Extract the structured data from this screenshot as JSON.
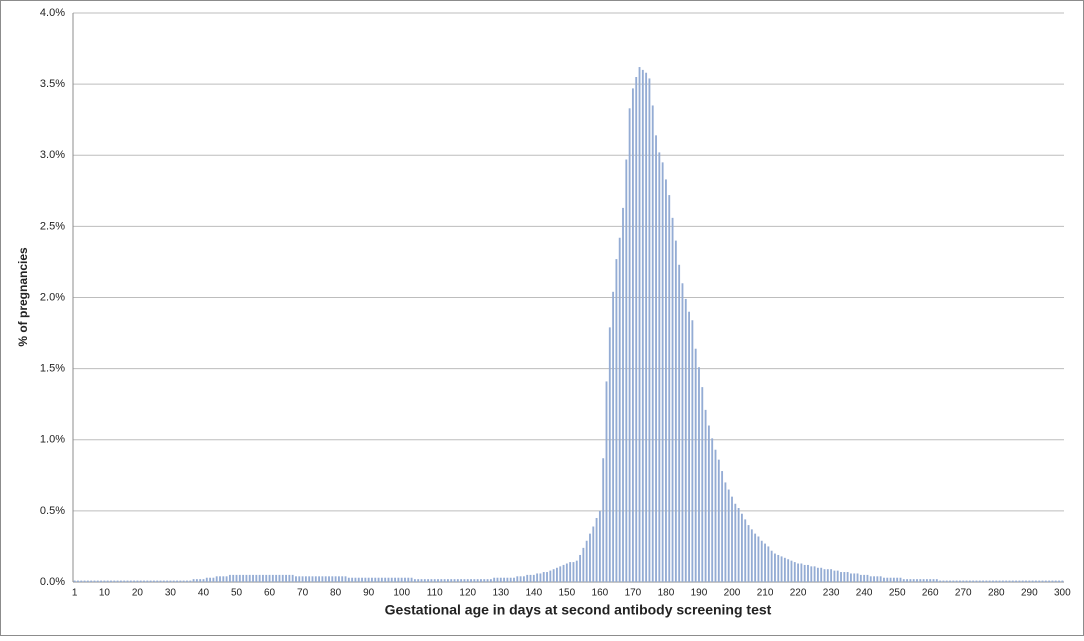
{
  "chart_data": {
    "type": "bar",
    "x_label": "Gestational age in days at second antibody screening test",
    "y_label": "% of pregnancies",
    "color": "#94acd4",
    "grid": true,
    "ylim": [
      0,
      4
    ],
    "yticks": [
      {
        "value": 0,
        "label": "0.0%"
      },
      {
        "value": 0.5,
        "label": "0.5%"
      },
      {
        "value": 1,
        "label": "1.0%"
      },
      {
        "value": 1.5,
        "label": "1.5%"
      },
      {
        "value": 2,
        "label": "2.0%"
      },
      {
        "value": 2.5,
        "label": "2.5%"
      },
      {
        "value": 3,
        "label": "3.0%"
      },
      {
        "value": 3.5,
        "label": "3.5%"
      },
      {
        "value": 4,
        "label": "4.0%"
      }
    ],
    "categories": [
      "1",
      null,
      null,
      null,
      null,
      null,
      null,
      null,
      null,
      "10",
      null,
      null,
      null,
      null,
      null,
      null,
      null,
      null,
      null,
      "20",
      null,
      null,
      null,
      null,
      null,
      null,
      null,
      null,
      null,
      "30",
      null,
      null,
      null,
      null,
      null,
      null,
      null,
      null,
      null,
      "40",
      null,
      null,
      null,
      null,
      null,
      null,
      null,
      null,
      null,
      "50",
      null,
      null,
      null,
      null,
      null,
      null,
      null,
      null,
      null,
      "60",
      null,
      null,
      null,
      null,
      null,
      null,
      null,
      null,
      null,
      "70",
      null,
      null,
      null,
      null,
      null,
      null,
      null,
      null,
      null,
      "80",
      null,
      null,
      null,
      null,
      null,
      null,
      null,
      null,
      null,
      "90",
      null,
      null,
      null,
      null,
      null,
      null,
      null,
      null,
      null,
      "100",
      null,
      null,
      null,
      null,
      null,
      null,
      null,
      null,
      null,
      "110",
      null,
      null,
      null,
      null,
      null,
      null,
      null,
      null,
      null,
      "120",
      null,
      null,
      null,
      null,
      null,
      null,
      null,
      null,
      null,
      "130",
      null,
      null,
      null,
      null,
      null,
      null,
      null,
      null,
      null,
      "140",
      null,
      null,
      null,
      null,
      null,
      null,
      null,
      null,
      null,
      "150",
      null,
      null,
      null,
      null,
      null,
      null,
      null,
      null,
      null,
      "160",
      null,
      null,
      null,
      null,
      null,
      null,
      null,
      null,
      null,
      "170",
      null,
      null,
      null,
      null,
      null,
      null,
      null,
      null,
      null,
      "180",
      null,
      null,
      null,
      null,
      null,
      null,
      null,
      null,
      null,
      "190",
      null,
      null,
      null,
      null,
      null,
      null,
      null,
      null,
      null,
      "200",
      null,
      null,
      null,
      null,
      null,
      null,
      null,
      null,
      null,
      "210",
      null,
      null,
      null,
      null,
      null,
      null,
      null,
      null,
      null,
      "220",
      null,
      null,
      null,
      null,
      null,
      null,
      null,
      null,
      null,
      "230",
      null,
      null,
      null,
      null,
      null,
      null,
      null,
      null,
      null,
      "240",
      null,
      null,
      null,
      null,
      null,
      null,
      null,
      null,
      null,
      "250",
      null,
      null,
      null,
      null,
      null,
      null,
      null,
      null,
      null,
      "260",
      null,
      null,
      null,
      null,
      null,
      null,
      null,
      null,
      null,
      "270",
      null,
      null,
      null,
      null,
      null,
      null,
      null,
      null,
      null,
      "280",
      null,
      null,
      null,
      null,
      null,
      null,
      null,
      null,
      null,
      "290",
      null,
      null,
      null,
      null,
      null,
      null,
      null,
      null,
      null,
      "300"
    ],
    "values": [
      0.01,
      0.01,
      0.01,
      0.01,
      0.01,
      0.01,
      0.01,
      0.01,
      0.01,
      0.01,
      0.01,
      0.01,
      0.01,
      0.01,
      0.01,
      0.01,
      0.01,
      0.01,
      0.01,
      0.01,
      0.01,
      0.01,
      0.01,
      0.01,
      0.01,
      0.01,
      0.01,
      0.01,
      0.01,
      0.01,
      0.01,
      0.01,
      0.01,
      0.01,
      0.01,
      0.01,
      0.02,
      0.02,
      0.02,
      0.02,
      0.03,
      0.03,
      0.03,
      0.04,
      0.04,
      0.04,
      0.04,
      0.05,
      0.05,
      0.05,
      0.05,
      0.05,
      0.05,
      0.05,
      0.05,
      0.05,
      0.05,
      0.05,
      0.05,
      0.05,
      0.05,
      0.05,
      0.05,
      0.05,
      0.05,
      0.05,
      0.05,
      0.04,
      0.04,
      0.04,
      0.04,
      0.04,
      0.04,
      0.04,
      0.04,
      0.04,
      0.04,
      0.04,
      0.04,
      0.04,
      0.04,
      0.04,
      0.04,
      0.03,
      0.03,
      0.03,
      0.03,
      0.03,
      0.03,
      0.03,
      0.03,
      0.03,
      0.03,
      0.03,
      0.03,
      0.03,
      0.03,
      0.03,
      0.03,
      0.03,
      0.03,
      0.03,
      0.03,
      0.02,
      0.02,
      0.02,
      0.02,
      0.02,
      0.02,
      0.02,
      0.02,
      0.02,
      0.02,
      0.02,
      0.02,
      0.02,
      0.02,
      0.02,
      0.02,
      0.02,
      0.02,
      0.02,
      0.02,
      0.02,
      0.02,
      0.02,
      0.02,
      0.03,
      0.03,
      0.03,
      0.03,
      0.03,
      0.03,
      0.03,
      0.04,
      0.04,
      0.04,
      0.05,
      0.05,
      0.05,
      0.06,
      0.06,
      0.07,
      0.07,
      0.08,
      0.09,
      0.1,
      0.11,
      0.12,
      0.13,
      0.14,
      0.14,
      0.15,
      0.19,
      0.24,
      0.29,
      0.34,
      0.39,
      0.45,
      0.5,
      0.87,
      1.41,
      1.79,
      2.04,
      2.27,
      2.42,
      2.63,
      2.97,
      3.33,
      3.47,
      3.55,
      3.62,
      3.6,
      3.58,
      3.54,
      3.35,
      3.14,
      3.02,
      2.95,
      2.83,
      2.72,
      2.56,
      2.4,
      2.23,
      2.1,
      1.99,
      1.9,
      1.84,
      1.64,
      1.51,
      1.37,
      1.21,
      1.1,
      1.01,
      0.93,
      0.86,
      0.78,
      0.7,
      0.65,
      0.6,
      0.55,
      0.52,
      0.48,
      0.44,
      0.4,
      0.37,
      0.34,
      0.32,
      0.29,
      0.27,
      0.25,
      0.22,
      0.2,
      0.19,
      0.18,
      0.17,
      0.16,
      0.15,
      0.14,
      0.13,
      0.13,
      0.12,
      0.12,
      0.11,
      0.11,
      0.1,
      0.1,
      0.09,
      0.09,
      0.09,
      0.08,
      0.08,
      0.07,
      0.07,
      0.07,
      0.06,
      0.06,
      0.06,
      0.05,
      0.05,
      0.05,
      0.04,
      0.04,
      0.04,
      0.04,
      0.03,
      0.03,
      0.03,
      0.03,
      0.03,
      0.03,
      0.02,
      0.02,
      0.02,
      0.02,
      0.02,
      0.02,
      0.02,
      0.02,
      0.02,
      0.02,
      0.02,
      0.01,
      0.01,
      0.01,
      0.01,
      0.01,
      0.01,
      0.01,
      0.01,
      0.01,
      0.01,
      0.01,
      0.01,
      0.01,
      0.01,
      0.01,
      0.01,
      0.01,
      0.01,
      0.01,
      0.01,
      0.01,
      0.01,
      0.01,
      0.01,
      0.01,
      0.01,
      0.01,
      0.01,
      0.01,
      0.01,
      0.01,
      0.01,
      0.01,
      0.01,
      0.01,
      0.01,
      0.01,
      0.01
    ]
  }
}
